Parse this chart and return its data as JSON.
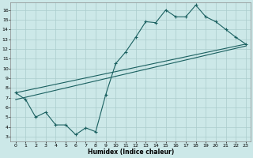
{
  "xlabel": "Humidex (Indice chaleur)",
  "ylabel": "",
  "xlim": [
    -0.5,
    23.5
  ],
  "ylim": [
    2.5,
    16.8
  ],
  "yticks": [
    3,
    4,
    5,
    6,
    7,
    8,
    9,
    10,
    11,
    12,
    13,
    14,
    15,
    16
  ],
  "xticks": [
    0,
    1,
    2,
    3,
    4,
    5,
    6,
    7,
    8,
    9,
    10,
    11,
    12,
    13,
    14,
    15,
    16,
    17,
    18,
    19,
    20,
    21,
    22,
    23
  ],
  "bg_color": "#cce8e8",
  "grid_color": "#aacccc",
  "line_color": "#1a6060",
  "line1_x": [
    0,
    1,
    2,
    3,
    4,
    5,
    6,
    7,
    8,
    9,
    10,
    11,
    12,
    13,
    14,
    15,
    16,
    17,
    18,
    19,
    20,
    21,
    22,
    23
  ],
  "line1_y": [
    7.5,
    6.8,
    5.0,
    5.5,
    4.2,
    4.2,
    3.2,
    3.9,
    3.5,
    7.3,
    10.5,
    11.7,
    13.2,
    14.8,
    14.7,
    16.0,
    15.3,
    15.3,
    16.5,
    15.3,
    14.8,
    14.0,
    13.2,
    12.5
  ],
  "line2_x": [
    0,
    23
  ],
  "line2_y": [
    7.5,
    12.5
  ],
  "line3_x": [
    0,
    23
  ],
  "line3_y": [
    6.8,
    12.3
  ]
}
